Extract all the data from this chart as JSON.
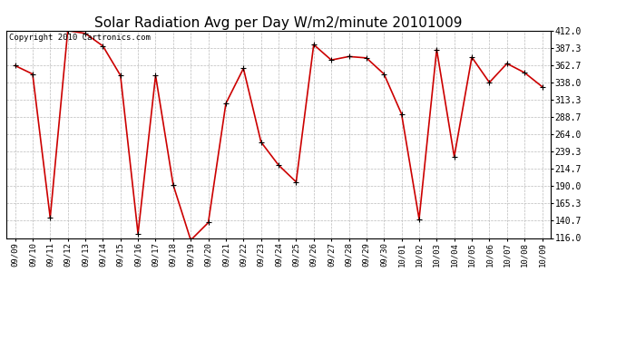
{
  "title": "Solar Radiation Avg per Day W/m2/minute 20101009",
  "copyright": "Copyright 2010 Cartronics.com",
  "dates": [
    "09/09",
    "09/10",
    "09/11",
    "09/12",
    "09/13",
    "09/14",
    "09/15",
    "09/16",
    "09/17",
    "09/18",
    "09/19",
    "09/20",
    "09/21",
    "09/22",
    "09/23",
    "09/24",
    "09/25",
    "09/26",
    "09/27",
    "09/28",
    "09/29",
    "09/30",
    "10/01",
    "10/02",
    "10/03",
    "10/04",
    "10/05",
    "10/06",
    "10/07",
    "10/08",
    "10/09"
  ],
  "values": [
    362.0,
    350.0,
    145.0,
    412.0,
    408.0,
    390.0,
    348.0,
    122.0,
    348.0,
    192.0,
    113.0,
    138.0,
    308.0,
    358.0,
    253.0,
    220.0,
    196.0,
    392.0,
    370.0,
    375.0,
    373.0,
    350.0,
    293.0,
    143.0,
    385.0,
    232.0,
    374.0,
    338.0,
    365.0,
    352.0,
    332.0
  ],
  "ylim": [
    116.0,
    412.0
  ],
  "yticks": [
    116.0,
    140.7,
    165.3,
    190.0,
    214.7,
    239.3,
    264.0,
    288.7,
    313.3,
    338.0,
    362.7,
    387.3,
    412.0
  ],
  "line_color": "#cc0000",
  "marker": "+",
  "marker_color": "#000000",
  "bg_color": "#ffffff",
  "grid_color": "#bbbbbb",
  "title_fontsize": 11,
  "copyright_fontsize": 6.5,
  "tick_fontsize": 6.5,
  "ytick_fontsize": 7
}
